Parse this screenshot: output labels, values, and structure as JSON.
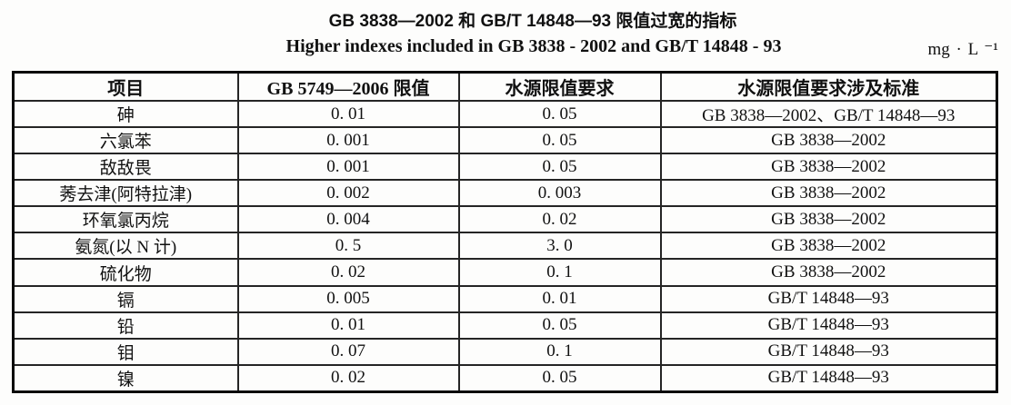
{
  "title": "GB 3838—2002 和 GB/T 14848—93 限值过宽的指标",
  "subtitle": "Higher indexes included in GB 3838 - 2002 and GB/T 14848 - 93",
  "unit": "mg · L ⁻¹",
  "table": {
    "headers": [
      "项目",
      "GB 5749—2006 限值",
      "水源限值要求",
      "水源限值要求涉及标准"
    ],
    "column_keys": [
      "item",
      "gb5749-2006-limit",
      "source-limit-requirement",
      "source-limit-standards"
    ],
    "rows": [
      [
        "砷",
        "0. 01",
        "0. 05",
        "GB 3838—2002、GB/T 14848—93"
      ],
      [
        "六氯苯",
        "0. 001",
        "0. 05",
        "GB 3838—2002"
      ],
      [
        "敌敌畏",
        "0. 001",
        "0. 05",
        "GB 3838—2002"
      ],
      [
        "莠去津(阿特拉津)",
        "0. 002",
        "0. 003",
        "GB 3838—2002"
      ],
      [
        "环氧氯丙烷",
        "0. 004",
        "0. 02",
        "GB 3838—2002"
      ],
      [
        "氨氮(以 N 计)",
        "0. 5",
        "3. 0",
        "GB 3838—2002"
      ],
      [
        "硫化物",
        "0. 02",
        "0. 1",
        "GB 3838—2002"
      ],
      [
        "镉",
        "0. 005",
        "0. 01",
        "GB/T 14848—93"
      ],
      [
        "铅",
        "0. 01",
        "0. 05",
        "GB/T 14848—93"
      ],
      [
        "钼",
        "0. 07",
        "0. 1",
        "GB/T 14848—93"
      ],
      [
        "镍",
        "0. 02",
        "0. 05",
        "GB/T 14848—93"
      ]
    ]
  }
}
